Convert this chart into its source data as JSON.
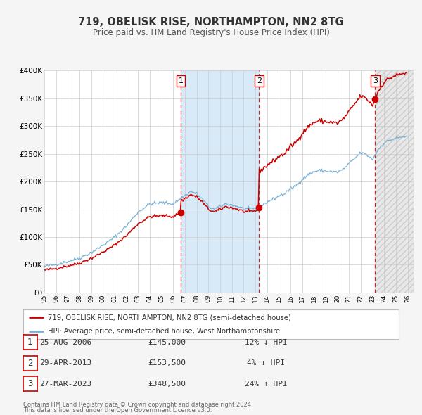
{
  "title": "719, OBELISK RISE, NORTHAMPTON, NN2 8TG",
  "subtitle": "Price paid vs. HM Land Registry's House Price Index (HPI)",
  "legend_line1": "719, OBELISK RISE, NORTHAMPTON, NN2 8TG (semi-detached house)",
  "legend_line2": "HPI: Average price, semi-detached house, West Northamptonshire",
  "footer1": "Contains HM Land Registry data © Crown copyright and database right 2024.",
  "footer2": "This data is licensed under the Open Government Licence v3.0.",
  "sale_color": "#cc0000",
  "hpi_color": "#7ab0d4",
  "background_color": "#f5f5f5",
  "plot_bg_color": "#ffffff",
  "ylim": [
    0,
    400000
  ],
  "yticks": [
    0,
    50000,
    100000,
    150000,
    200000,
    250000,
    300000,
    350000,
    400000
  ],
  "ytick_labels": [
    "£0",
    "£50K",
    "£100K",
    "£150K",
    "£200K",
    "£250K",
    "£300K",
    "£350K",
    "£400K"
  ],
  "xlim_start": 1995.0,
  "xlim_end": 2026.5,
  "sale_dates": [
    2006.646,
    2013.328,
    2023.228
  ],
  "sale_prices": [
    145000,
    153500,
    348500
  ],
  "sale_labels": [
    "1",
    "2",
    "3"
  ],
  "sale_info": [
    {
      "num": "1",
      "date": "25-AUG-2006",
      "price": "£145,000",
      "pct": "12%",
      "dir": "↓",
      "label": "HPI"
    },
    {
      "num": "2",
      "date": "29-APR-2013",
      "price": "£153,500",
      "pct": "4%",
      "dir": "↓",
      "label": "HPI"
    },
    {
      "num": "3",
      "date": "27-MAR-2023",
      "price": "£348,500",
      "pct": "24%",
      "dir": "↑",
      "label": "HPI"
    }
  ]
}
